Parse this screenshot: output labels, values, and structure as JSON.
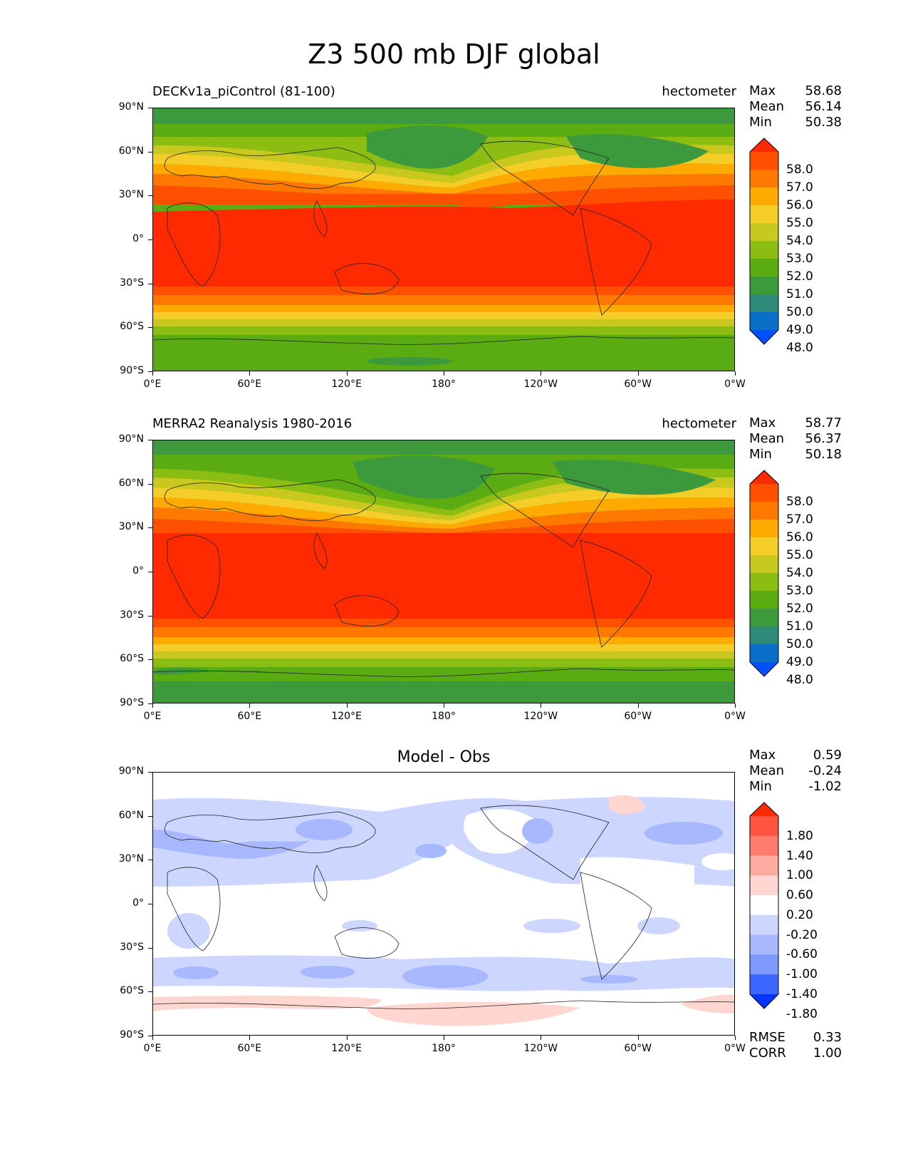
{
  "figure": {
    "title": "Z3 500 mb DJF global"
  },
  "axes": {
    "lat_labels": [
      "90°N",
      "60°N",
      "30°N",
      "0°",
      "30°S",
      "60°S",
      "90°S"
    ],
    "lon_labels": [
      "0°E",
      "60°E",
      "120°E",
      "180°",
      "120°W",
      "60°W",
      "0°W"
    ]
  },
  "panels": [
    {
      "title_left": "DECKv1a_piControl (81-100)",
      "title_right": "hectometer",
      "stats": [
        {
          "label": "Max",
          "value": "58.68"
        },
        {
          "label": "Mean",
          "value": "56.14"
        },
        {
          "label": "Min",
          "value": "50.38"
        }
      ],
      "colorbar_labels": [
        "58.0",
        "57.0",
        "56.0",
        "55.0",
        "54.0",
        "53.0",
        "52.0",
        "51.0",
        "50.0",
        "49.0",
        "48.0"
      ]
    },
    {
      "title_left": "MERRA2 Reanalysis 1980-2016",
      "title_right": "hectometer",
      "stats": [
        {
          "label": "Max",
          "value": "58.77"
        },
        {
          "label": "Mean",
          "value": "56.37"
        },
        {
          "label": "Min",
          "value": "50.18"
        }
      ],
      "colorbar_labels": [
        "58.0",
        "57.0",
        "56.0",
        "55.0",
        "54.0",
        "53.0",
        "52.0",
        "51.0",
        "50.0",
        "49.0",
        "48.0"
      ]
    },
    {
      "title_center": "Model - Obs",
      "stats": [
        {
          "label": "Max",
          "value": "0.59"
        },
        {
          "label": "Mean",
          "value": "-0.24"
        },
        {
          "label": "Min",
          "value": "-1.02"
        }
      ],
      "colorbar_labels": [
        "1.80",
        "1.40",
        "1.00",
        "0.60",
        "0.20",
        "-0.20",
        "-0.60",
        "-1.00",
        "-1.40",
        "-1.80"
      ],
      "metrics": [
        {
          "label": "RMSE",
          "value": "0.33"
        },
        {
          "label": "CORR",
          "value": "1.00"
        }
      ]
    }
  ],
  "colors": {
    "field_levels": [
      "#0050ff",
      "#0a6fc8",
      "#2e8b7a",
      "#3c9a3c",
      "#5aac12",
      "#8cbd12",
      "#c8c81e",
      "#f5cd28",
      "#ffaa00",
      "#ff7800",
      "#ff5000",
      "#ff2a00"
    ],
    "diff_levels": [
      "#0533ff",
      "#3b67ff",
      "#7e9aff",
      "#a8b8ff",
      "#ccd6ff",
      "#ffffff",
      "#ffd6d0",
      "#ffaaa0",
      "#ff7c6c",
      "#ff5540",
      "#ff2a00"
    ]
  }
}
